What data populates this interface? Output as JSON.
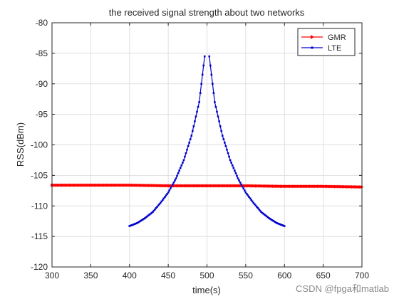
{
  "chart_data": {
    "type": "line",
    "title": "the received signal strength about two networks",
    "xlabel": "time(s)",
    "ylabel": "RSS(dBm)",
    "xlim": [
      300,
      700
    ],
    "ylim": [
      -120,
      -80
    ],
    "xticks": [
      300,
      350,
      400,
      450,
      500,
      550,
      600,
      650,
      700
    ],
    "yticks": [
      -80,
      -85,
      -90,
      -95,
      -100,
      -105,
      -110,
      -115,
      -120
    ],
    "grid": true,
    "legend_position": "top-right",
    "series": [
      {
        "name": "GMR",
        "color": "#ff0000",
        "marker": "triangle-right",
        "x": [
          300,
          350,
          400,
          450,
          500,
          550,
          600,
          650,
          700
        ],
        "y": [
          -106.6,
          -106.6,
          -106.6,
          -106.7,
          -106.7,
          -106.7,
          -106.8,
          -106.8,
          -106.9
        ]
      },
      {
        "name": "LTE",
        "color": "#0000cc",
        "marker": "square",
        "x": [
          400,
          410,
          420,
          430,
          440,
          450,
          460,
          470,
          480,
          490,
          497,
          503,
          510,
          520,
          530,
          540,
          550,
          560,
          570,
          580,
          590,
          600
        ],
        "y": [
          -113.3,
          -112.8,
          -112.0,
          -111.0,
          -109.5,
          -107.8,
          -105.5,
          -102.5,
          -98.5,
          -93.0,
          -85.5,
          -85.5,
          -93.0,
          -98.5,
          -102.5,
          -105.5,
          -107.8,
          -109.5,
          -111.0,
          -112.0,
          -112.8,
          -113.3
        ]
      }
    ]
  },
  "watermark": "CSDN @fpga和matlab"
}
